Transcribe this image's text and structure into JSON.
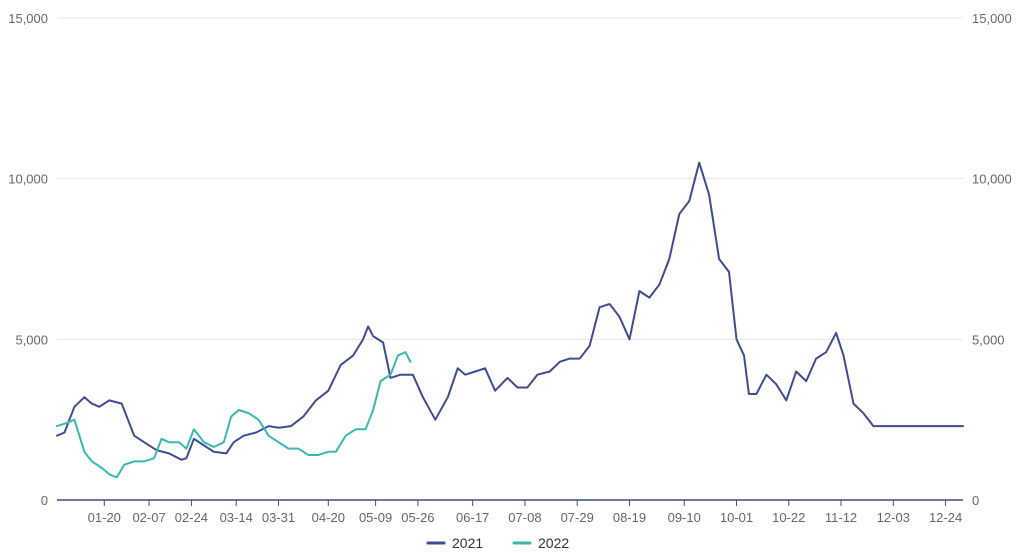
{
  "chart_data": {
    "type": "line",
    "ylim": [
      0,
      15000
    ],
    "y_ticks": [
      0,
      5000,
      10000,
      15000
    ],
    "y_tick_labels": [
      "0",
      "5,000",
      "10,000",
      "15,000"
    ],
    "dual_y_axis_labels": true,
    "grid": "horizontal",
    "x_range": [
      "01-01",
      "12-31"
    ],
    "x_ticks": [
      "01-20",
      "02-07",
      "02-24",
      "03-14",
      "03-31",
      "04-20",
      "05-09",
      "05-26",
      "06-17",
      "07-08",
      "07-29",
      "08-19",
      "09-10",
      "10-01",
      "10-22",
      "11-12",
      "12-03",
      "12-24"
    ],
    "legend_position": "bottom-center",
    "series": [
      {
        "name": "2021",
        "color": "#3f4d8f",
        "x": [
          "01-01",
          "01-04",
          "01-08",
          "01-12",
          "01-15",
          "01-18",
          "01-22",
          "01-27",
          "02-01",
          "02-05",
          "02-10",
          "02-15",
          "02-20",
          "02-22",
          "02-25",
          "03-01",
          "03-05",
          "03-10",
          "03-13",
          "03-17",
          "03-22",
          "03-27",
          "03-31",
          "04-05",
          "04-10",
          "04-15",
          "04-20",
          "04-25",
          "04-30",
          "05-04",
          "05-06",
          "05-08",
          "05-12",
          "05-15",
          "05-19",
          "05-24",
          "05-28",
          "06-02",
          "06-07",
          "06-11",
          "06-14",
          "06-18",
          "06-22",
          "06-26",
          "07-01",
          "07-05",
          "07-09",
          "07-13",
          "07-18",
          "07-22",
          "07-26",
          "07-30",
          "08-03",
          "08-07",
          "08-11",
          "08-15",
          "08-19",
          "08-23",
          "08-27",
          "08-31",
          "09-04",
          "09-08",
          "09-12",
          "09-16",
          "09-20",
          "09-24",
          "09-28",
          "10-01",
          "10-04",
          "10-06",
          "10-09",
          "10-13",
          "10-17",
          "10-21",
          "10-25",
          "10-29",
          "11-02",
          "11-06",
          "11-10",
          "11-13",
          "11-17",
          "11-21",
          "11-25",
          "11-29",
          "12-03",
          "12-06",
          "12-09",
          "12-12",
          "12-16",
          "12-20",
          "12-24",
          "12-27",
          "12-31"
        ],
        "values": [
          2000,
          2100,
          2900,
          3200,
          3000,
          2900,
          3100,
          3000,
          2000,
          1800,
          1550,
          1450,
          1250,
          1300,
          1900,
          1700,
          1500,
          1450,
          1800,
          2000,
          2100,
          2300,
          2250,
          2300,
          2600,
          3100,
          3400,
          4200,
          4500,
          5000,
          5400,
          5100,
          4900,
          3800,
          3900,
          3900,
          3200,
          2500,
          3200,
          4100,
          3900,
          4000,
          4100,
          3400,
          3800,
          3500,
          3500,
          3900,
          4000,
          4300,
          4400,
          4400,
          4800,
          6000,
          6100,
          5700,
          5000,
          6500,
          6300,
          6700,
          7500,
          8900,
          9300,
          10500,
          9500,
          7500,
          7100,
          5000,
          4500,
          3300,
          3300,
          3900,
          3600,
          3100,
          4000,
          3700,
          4400,
          4600,
          5200,
          4500,
          3000,
          2700,
          2300,
          2300,
          2300,
          2300,
          2300,
          2300,
          2300,
          2300,
          2300,
          2300,
          2300
        ],
        "values_note_unused": null
      },
      {
        "name": "2022",
        "color": "#38b8b0",
        "x": [
          "01-01",
          "01-05",
          "01-08",
          "01-12",
          "01-15",
          "01-19",
          "01-22",
          "01-25",
          "01-28",
          "02-01",
          "02-05",
          "02-09",
          "02-12",
          "02-15",
          "02-19",
          "02-22",
          "02-25",
          "03-01",
          "03-05",
          "03-09",
          "03-12",
          "03-15",
          "03-19",
          "03-23",
          "03-27",
          "03-31",
          "04-04",
          "04-08",
          "04-12",
          "04-16",
          "04-20",
          "04-23",
          "04-27",
          "05-01",
          "05-05",
          "05-08",
          "05-11",
          "05-15",
          "05-18",
          "05-21",
          "05-23"
        ],
        "values": [
          2300,
          2400,
          2500,
          1500,
          1200,
          1000,
          800,
          700,
          1100,
          1200,
          1200,
          1300,
          1900,
          1800,
          1800,
          1600,
          2200,
          1800,
          1650,
          1800,
          2600,
          2800,
          2700,
          2500,
          2000,
          1800,
          1600,
          1600,
          1400,
          1400,
          1500,
          1500,
          2000,
          2200,
          2200,
          2800,
          3700,
          3900,
          4500,
          4600,
          4300
        ]
      }
    ]
  }
}
